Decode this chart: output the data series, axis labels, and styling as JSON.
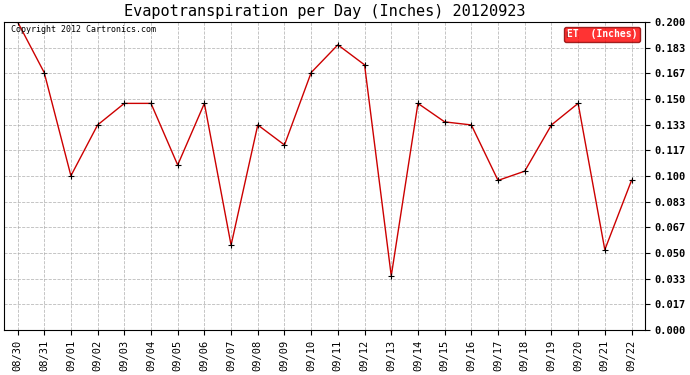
{
  "title": "Evapotranspiration per Day (Inches) 20120923",
  "copyright": "Copyright 2012 Cartronics.com",
  "legend_label": "ET  (Inches)",
  "dates": [
    "08/30",
    "08/31",
    "09/01",
    "09/02",
    "09/03",
    "09/04",
    "09/05",
    "09/06",
    "09/07",
    "09/08",
    "09/09",
    "09/10",
    "09/11",
    "09/12",
    "09/13",
    "09/14",
    "09/15",
    "09/16",
    "09/17",
    "09/18",
    "09/19",
    "09/20",
    "09/21",
    "09/22"
  ],
  "values": [
    0.2,
    0.167,
    0.1,
    0.133,
    0.147,
    0.147,
    0.107,
    0.147,
    0.055,
    0.133,
    0.12,
    0.167,
    0.185,
    0.172,
    0.035,
    0.147,
    0.135,
    0.133,
    0.097,
    0.103,
    0.133,
    0.147,
    0.052,
    0.097
  ],
  "ylim": [
    0.0,
    0.2
  ],
  "yticks": [
    0.0,
    0.017,
    0.033,
    0.05,
    0.067,
    0.083,
    0.1,
    0.117,
    0.133,
    0.15,
    0.167,
    0.183,
    0.2
  ],
  "line_color": "#cc0000",
  "marker": "+",
  "marker_color": "#000000",
  "bg_color": "#ffffff",
  "grid_color": "#aaaaaa",
  "title_fontsize": 11,
  "tick_fontsize": 7.5,
  "copyright_fontsize": 6,
  "legend_fontsize": 7
}
